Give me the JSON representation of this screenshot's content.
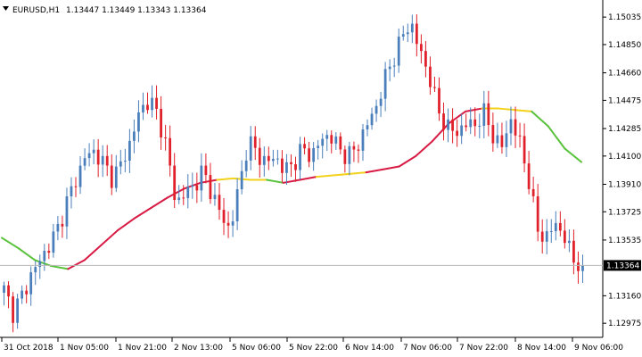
{
  "header": {
    "symbol": "EURUSD,H1",
    "ohlc": "1.13447 1.13449 1.13343 1.13364"
  },
  "colors": {
    "bull": "#4a7fbb",
    "bear": "#e0202a",
    "ma_yellow": "#f2d21b",
    "ma_green": "#58c23a",
    "ma_red": "#d81b44",
    "price_line": "#b8b8b8",
    "price_box_bg": "#000000",
    "price_box_text": "#ffffff"
  },
  "chart_data": {
    "type": "candlestick",
    "symbol": "EURUSD",
    "timeframe": "H1",
    "current_price": 1.13364,
    "ylim": [
      1.1288,
      1.1515
    ],
    "y_ticks": [
      1.15035,
      1.1485,
      1.1466,
      1.14475,
      1.14285,
      1.141,
      1.1391,
      1.13725,
      1.13535,
      1.13364,
      1.1316,
      1.12975
    ],
    "y_tick_labels": [
      "1.15035",
      "1.14850",
      "1.14660",
      "1.14475",
      "1.14285",
      "1.14100",
      "1.13910",
      "1.13725",
      "1.13535",
      "1.13364",
      "1.13160",
      "1.12975"
    ],
    "x_labels": [
      "31 Oct 2018",
      "1 Nov 05:00",
      "1 Nov 21:00",
      "2 Nov 13:00",
      "5 Nov 06:00",
      "5 Nov 22:00",
      "6 Nov 14:00",
      "7 Nov 06:00",
      "7 Nov 22:00",
      "8 Nov 14:00",
      "9 Nov 06:00"
    ],
    "close_anchors": [
      1.132,
      1.1305,
      1.1316,
      1.133,
      1.134,
      1.135,
      1.1362,
      1.138,
      1.1395,
      1.141,
      1.1413,
      1.1405,
      1.1395,
      1.1405,
      1.142,
      1.144,
      1.1448,
      1.1438,
      1.1415,
      1.1378,
      1.1385,
      1.139,
      1.14,
      1.1385,
      1.137,
      1.136,
      1.139,
      1.142,
      1.1412,
      1.1405,
      1.141,
      1.14,
      1.1405,
      1.1415,
      1.141,
      1.142,
      1.1425,
      1.1415,
      1.141,
      1.1415,
      1.143,
      1.144,
      1.146,
      1.1475,
      1.149,
      1.15,
      1.148,
      1.1465,
      1.144,
      1.143,
      1.1425,
      1.1432,
      1.143,
      1.144,
      1.1425,
      1.1415,
      1.1435,
      1.142,
      1.1395,
      1.136,
      1.1355,
      1.1365,
      1.1355,
      1.134,
      1.13364
    ],
    "ma_values": [
      1.1355,
      1.1348,
      1.134,
      1.1336,
      1.1334,
      1.134,
      1.135,
      1.136,
      1.1368,
      1.1375,
      1.1382,
      1.1388,
      1.1392,
      1.1394,
      1.1395,
      1.1394,
      1.1394,
      1.1392,
      1.1394,
      1.1396,
      1.1397,
      1.1398,
      1.1399,
      1.1401,
      1.1403,
      1.141,
      1.142,
      1.1432,
      1.144,
      1.1442,
      1.1442,
      1.1441,
      1.144,
      1.143,
      1.1415,
      1.1406
    ]
  }
}
